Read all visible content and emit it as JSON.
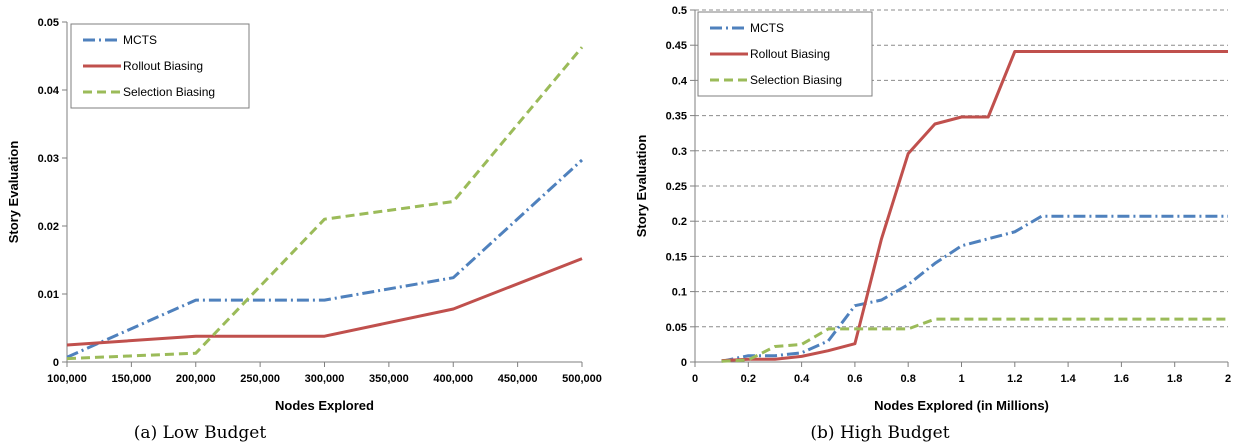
{
  "chart_data": [
    {
      "type": "line",
      "caption": "(a) Low Budget",
      "xlabel": "Nodes Explored",
      "ylabel": "Story Evaluation",
      "xlim": [
        100000,
        500000
      ],
      "ylim": [
        0,
        0.05
      ],
      "x_ticks": [
        "100,000",
        "150,000",
        "200,000",
        "250,000",
        "300,000",
        "350,000",
        "400,000",
        "450,000",
        "500,000"
      ],
      "x_tick_values": [
        100000,
        150000,
        200000,
        250000,
        300000,
        350000,
        400000,
        450000,
        500000
      ],
      "y_ticks": [
        "0",
        "0.01",
        "0.02",
        "0.03",
        "0.04",
        "0.05"
      ],
      "y_tick_values": [
        0,
        0.01,
        0.02,
        0.03,
        0.04,
        0.05
      ],
      "grid": false,
      "legend_position": "top-left",
      "series": [
        {
          "name": "MCTS",
          "color": "#4f81bd",
          "style": "dashdot",
          "x": [
            100000,
            200000,
            300000,
            400000,
            500000
          ],
          "y": [
            0.0007,
            0.0091,
            0.0091,
            0.0124,
            0.0297
          ]
        },
        {
          "name": "Rollout Biasing",
          "color": "#c0504d",
          "style": "solid",
          "x": [
            100000,
            200000,
            300000,
            400000,
            500000
          ],
          "y": [
            0.0025,
            0.0038,
            0.0038,
            0.0078,
            0.0152
          ]
        },
        {
          "name": "Selection Biasing",
          "color": "#9bbb59",
          "style": "dashed",
          "x": [
            100000,
            200000,
            300000,
            400000,
            500000
          ],
          "y": [
            0.0005,
            0.0013,
            0.021,
            0.0236,
            0.0463
          ]
        }
      ]
    },
    {
      "type": "line",
      "caption": "(b) High Budget",
      "xlabel": "Nodes Explored (in Millions)",
      "ylabel": "Story Evaluation",
      "xlim": [
        0,
        2
      ],
      "ylim": [
        0,
        0.5
      ],
      "x_ticks": [
        "0",
        "0.2",
        "0.4",
        "0.6",
        "0.8",
        "1",
        "1.2",
        "1.4",
        "1.6",
        "1.8",
        "2"
      ],
      "x_tick_values": [
        0,
        0.2,
        0.4,
        0.6,
        0.8,
        1,
        1.2,
        1.4,
        1.6,
        1.8,
        2
      ],
      "y_ticks": [
        "0",
        "0.05",
        "0.1",
        "0.15",
        "0.2",
        "0.25",
        "0.3",
        "0.35",
        "0.4",
        "0.45",
        "0.5"
      ],
      "y_tick_values": [
        0,
        0.05,
        0.1,
        0.15,
        0.2,
        0.25,
        0.3,
        0.35,
        0.4,
        0.45,
        0.5
      ],
      "grid": true,
      "legend_position": "top-left",
      "series": [
        {
          "name": "MCTS",
          "color": "#4f81bd",
          "style": "dashdot",
          "x": [
            0.1,
            0.2,
            0.3,
            0.4,
            0.5,
            0.6,
            0.7,
            0.8,
            0.9,
            1.0,
            1.1,
            1.2,
            1.3,
            1.4,
            1.5,
            1.6,
            1.7,
            1.8,
            1.9,
            2.0
          ],
          "y": [
            0.001,
            0.009,
            0.009,
            0.013,
            0.03,
            0.08,
            0.088,
            0.11,
            0.14,
            0.165,
            0.175,
            0.185,
            0.207,
            0.207,
            0.207,
            0.207,
            0.207,
            0.207,
            0.207,
            0.207
          ]
        },
        {
          "name": "Rollout Biasing",
          "color": "#c0504d",
          "style": "solid",
          "x": [
            0.1,
            0.2,
            0.3,
            0.4,
            0.5,
            0.6,
            0.7,
            0.8,
            0.9,
            1.0,
            1.1,
            1.2,
            1.3,
            1.4,
            1.5,
            1.6,
            1.7,
            1.8,
            1.9,
            2.0
          ],
          "y": [
            0.002,
            0.004,
            0.004,
            0.008,
            0.016,
            0.026,
            0.175,
            0.296,
            0.338,
            0.348,
            0.348,
            0.441,
            0.441,
            0.441,
            0.441,
            0.441,
            0.441,
            0.441,
            0.441,
            0.441
          ]
        },
        {
          "name": "Selection Biasing",
          "color": "#9bbb59",
          "style": "dashed",
          "x": [
            0.1,
            0.2,
            0.3,
            0.4,
            0.5,
            0.6,
            0.7,
            0.8,
            0.9,
            1.0,
            1.1,
            1.2,
            1.3,
            1.4,
            1.5,
            1.6,
            1.7,
            1.8,
            1.9,
            2.0
          ],
          "y": [
            0.001,
            0.003,
            0.022,
            0.025,
            0.047,
            0.047,
            0.047,
            0.047,
            0.061,
            0.061,
            0.061,
            0.061,
            0.061,
            0.061,
            0.061,
            0.061,
            0.061,
            0.061,
            0.061,
            0.061
          ]
        }
      ]
    }
  ]
}
